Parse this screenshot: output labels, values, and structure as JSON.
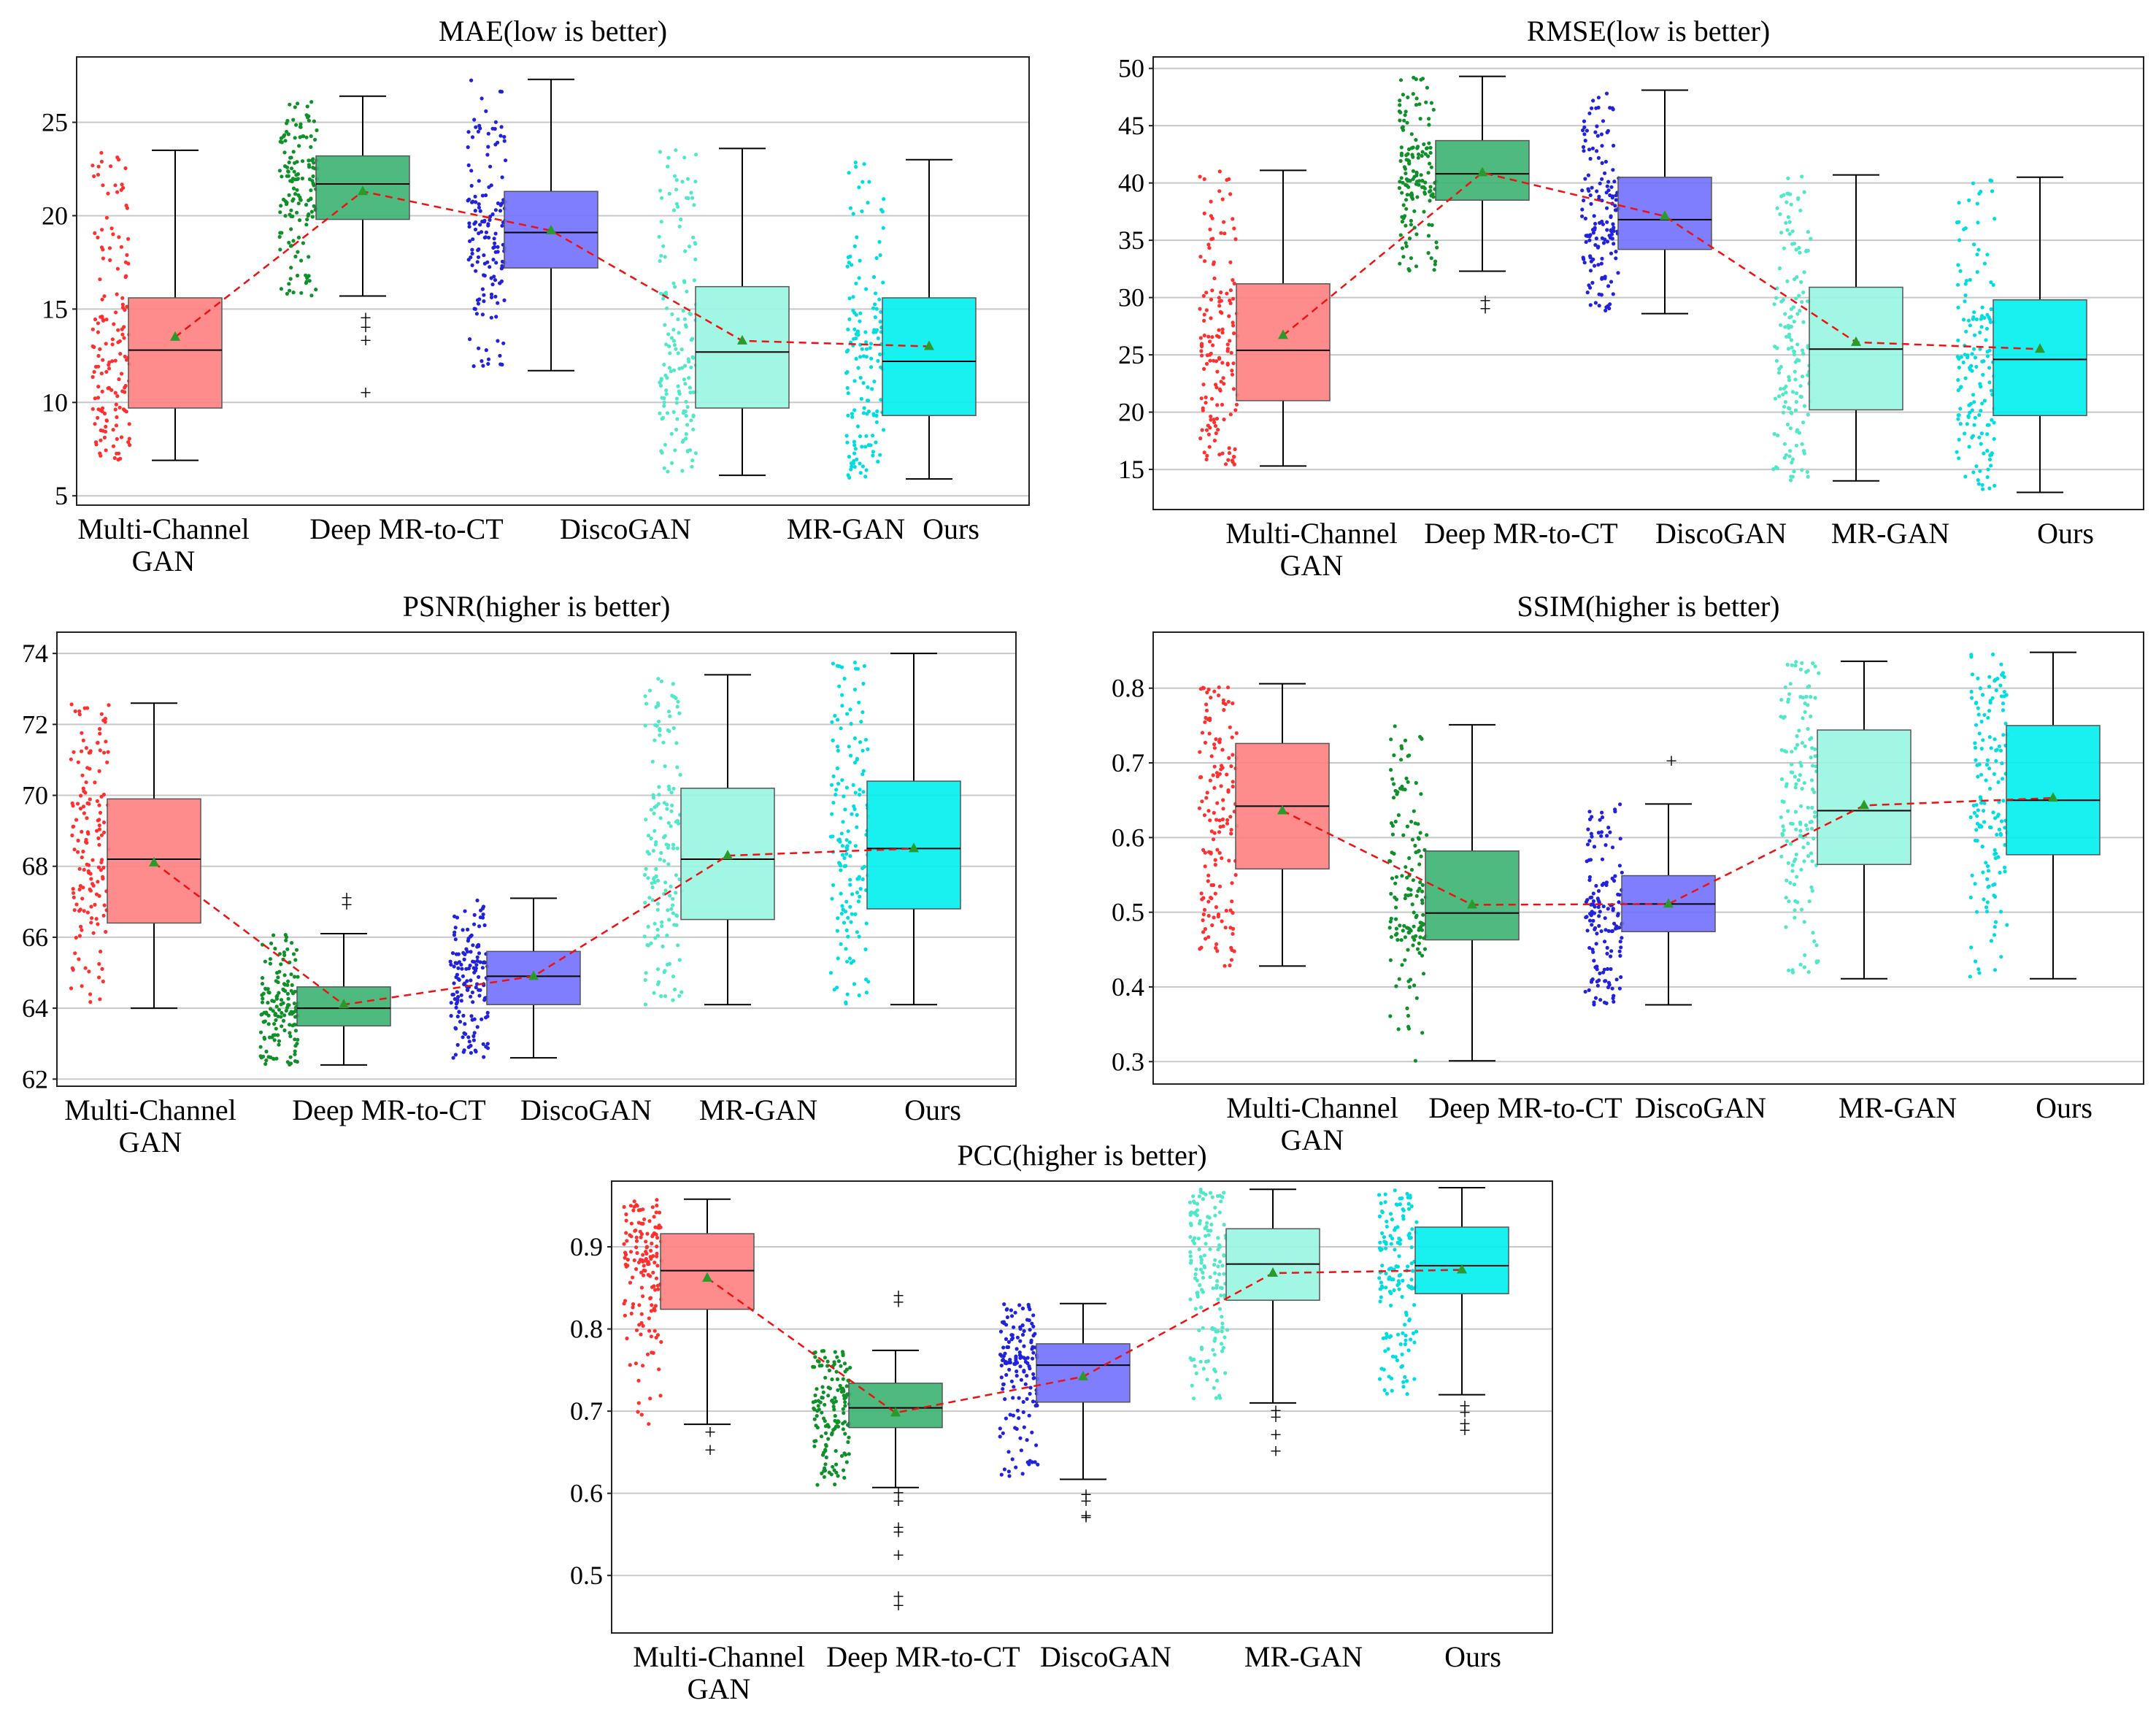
{
  "figure": {
    "description_free": true
  },
  "chart_data": [
    {
      "type": "box",
      "title": "MAE(low is better)",
      "categories": [
        "Multi-Channel GAN",
        "Deep MR-to-CT",
        "DiscoGAN",
        "MR-GAN",
        "Ours"
      ],
      "category_lines": [
        [
          "Multi-Channel",
          "GAN"
        ],
        [
          "Deep MR-to-CT"
        ],
        [
          "DiscoGAN"
        ],
        [
          "MR-GAN"
        ],
        [
          "Ours"
        ]
      ],
      "ylim": [
        4.5,
        28.5
      ],
      "yticks": [
        5,
        10,
        15,
        20,
        25
      ],
      "colors": [
        "#ff7f7f",
        "#3cb371",
        "#7070ff",
        "#98f5e1",
        "#00f0f0"
      ],
      "point_colors": [
        "#ff3030",
        "#10902a",
        "#2222dd",
        "#50e8c8",
        "#00dde0"
      ],
      "boxes": [
        {
          "whislo": 6.9,
          "q1": 9.7,
          "med": 12.8,
          "q3": 15.6,
          "whishi": 23.5,
          "mean": 13.5,
          "fliers": []
        },
        {
          "whislo": 15.7,
          "q1": 19.8,
          "med": 21.7,
          "q3": 23.2,
          "whishi": 26.4,
          "mean": 21.3,
          "fliers": [
            14.5,
            14.0,
            13.3,
            10.5
          ]
        },
        {
          "whislo": 11.7,
          "q1": 17.2,
          "med": 19.1,
          "q3": 21.3,
          "whishi": 27.3,
          "mean": 19.2,
          "fliers": []
        },
        {
          "whislo": 6.1,
          "q1": 9.7,
          "med": 12.7,
          "q3": 16.2,
          "whishi": 23.6,
          "mean": 13.3,
          "fliers": []
        },
        {
          "whislo": 5.9,
          "q1": 9.3,
          "med": 12.2,
          "q3": 15.6,
          "whishi": 23.0,
          "mean": 13.0,
          "fliers": []
        }
      ]
    },
    {
      "type": "box",
      "title": "RMSE(low is better)",
      "categories": [
        "Multi-Channel GAN",
        "Deep MR-to-CT",
        "DiscoGAN",
        "MR-GAN",
        "Ours"
      ],
      "category_lines": [
        [
          "Multi-Channel",
          "GAN"
        ],
        [
          "Deep MR-to-CT"
        ],
        [
          "DiscoGAN"
        ],
        [
          "MR-GAN"
        ],
        [
          "Ours"
        ]
      ],
      "ylim": [
        11.5,
        51.0
      ],
      "yticks": [
        15,
        20,
        25,
        30,
        35,
        40,
        45,
        50
      ],
      "colors": [
        "#ff7f7f",
        "#3cb371",
        "#7070ff",
        "#98f5e1",
        "#00f0f0"
      ],
      "point_colors": [
        "#ff3030",
        "#10902a",
        "#2222dd",
        "#50e8c8",
        "#00dde0"
      ],
      "boxes": [
        {
          "whislo": 15.3,
          "q1": 21.0,
          "med": 25.4,
          "q3": 31.2,
          "whishi": 41.1,
          "mean": 26.7,
          "fliers": []
        },
        {
          "whislo": 32.3,
          "q1": 38.5,
          "med": 40.8,
          "q3": 43.7,
          "whishi": 49.3,
          "mean": 40.9,
          "fliers": [
            29.7,
            29.0
          ]
        },
        {
          "whislo": 28.6,
          "q1": 34.2,
          "med": 36.8,
          "q3": 40.5,
          "whishi": 48.1,
          "mean": 37.1,
          "fliers": []
        },
        {
          "whislo": 14.0,
          "q1": 20.2,
          "med": 25.5,
          "q3": 30.9,
          "whishi": 40.7,
          "mean": 26.1,
          "fliers": []
        },
        {
          "whislo": 13.0,
          "q1": 19.7,
          "med": 24.6,
          "q3": 29.8,
          "whishi": 40.5,
          "mean": 25.5,
          "fliers": []
        }
      ]
    },
    {
      "type": "box",
      "title": "PSNR(higher is better)",
      "categories": [
        "Multi-Channel GAN",
        "Deep MR-to-CT",
        "DiscoGAN",
        "MR-GAN",
        "Ours"
      ],
      "category_lines": [
        [
          "Multi-Channel",
          "GAN"
        ],
        [
          "Deep MR-to-CT"
        ],
        [
          "DiscoGAN"
        ],
        [
          "MR-GAN"
        ],
        [
          "Ours"
        ]
      ],
      "ylim": [
        61.8,
        74.6
      ],
      "yticks": [
        62,
        64,
        66,
        68,
        70,
        72,
        74
      ],
      "colors": [
        "#ff7f7f",
        "#3cb371",
        "#7070ff",
        "#98f5e1",
        "#00f0f0"
      ],
      "point_colors": [
        "#ff3030",
        "#10902a",
        "#2222dd",
        "#50e8c8",
        "#00dde0"
      ],
      "boxes": [
        {
          "whislo": 64.0,
          "q1": 66.4,
          "med": 68.2,
          "q3": 69.9,
          "whishi": 72.6,
          "mean": 68.1,
          "fliers": []
        },
        {
          "whislo": 62.4,
          "q1": 63.5,
          "med": 64.0,
          "q3": 64.6,
          "whishi": 66.1,
          "mean": 64.1,
          "fliers": [
            67.1,
            66.9
          ]
        },
        {
          "whislo": 62.6,
          "q1": 64.1,
          "med": 64.9,
          "q3": 65.6,
          "whishi": 67.1,
          "mean": 64.9,
          "fliers": []
        },
        {
          "whislo": 64.1,
          "q1": 66.5,
          "med": 68.2,
          "q3": 70.2,
          "whishi": 73.4,
          "mean": 68.3,
          "fliers": []
        },
        {
          "whislo": 64.1,
          "q1": 66.8,
          "med": 68.5,
          "q3": 70.4,
          "whishi": 74.0,
          "mean": 68.5,
          "fliers": []
        }
      ]
    },
    {
      "type": "box",
      "title": "SSIM(higher is better)",
      "categories": [
        "Multi-Channel GAN",
        "Deep MR-to-CT",
        "DiscoGAN",
        "MR-GAN",
        "Ours"
      ],
      "category_lines": [
        [
          "Multi-Channel",
          "GAN"
        ],
        [
          "Deep MR-to-CT"
        ],
        [
          "DiscoGAN"
        ],
        [
          "MR-GAN"
        ],
        [
          "Ours"
        ]
      ],
      "ylim": [
        0.27,
        0.875
      ],
      "yticks": [
        0.3,
        0.4,
        0.5,
        0.6,
        0.7,
        0.8
      ],
      "colors": [
        "#ff7f7f",
        "#3cb371",
        "#7070ff",
        "#98f5e1",
        "#00f0f0"
      ],
      "point_colors": [
        "#ff3030",
        "#10902a",
        "#2222dd",
        "#50e8c8",
        "#00dde0"
      ],
      "boxes": [
        {
          "whislo": 0.428,
          "q1": 0.558,
          "med": 0.642,
          "q3": 0.726,
          "whishi": 0.806,
          "mean": 0.636,
          "fliers": []
        },
        {
          "whislo": 0.301,
          "q1": 0.463,
          "med": 0.499,
          "q3": 0.582,
          "whishi": 0.751,
          "mean": 0.51,
          "fliers": []
        },
        {
          "whislo": 0.376,
          "q1": 0.474,
          "med": 0.511,
          "q3": 0.549,
          "whishi": 0.645,
          "mean": 0.511,
          "fliers": [
            0.702
          ]
        },
        {
          "whislo": 0.411,
          "q1": 0.564,
          "med": 0.636,
          "q3": 0.744,
          "whishi": 0.836,
          "mean": 0.643,
          "fliers": []
        },
        {
          "whislo": 0.411,
          "q1": 0.577,
          "med": 0.65,
          "q3": 0.75,
          "whishi": 0.848,
          "mean": 0.653,
          "fliers": []
        }
      ]
    },
    {
      "type": "box",
      "title": "PCC(higher is better)",
      "categories": [
        "Multi-Channel GAN",
        "Deep MR-to-CT",
        "DiscoGAN",
        "MR-GAN",
        "Ours"
      ],
      "category_lines": [
        [
          "Multi-Channel",
          "GAN"
        ],
        [
          "Deep MR-to-CT"
        ],
        [
          "DiscoGAN"
        ],
        [
          "MR-GAN"
        ],
        [
          "Ours"
        ]
      ],
      "ylim": [
        0.43,
        0.98
      ],
      "yticks": [
        0.5,
        0.6,
        0.7,
        0.8,
        0.9
      ],
      "colors": [
        "#ff7f7f",
        "#3cb371",
        "#7070ff",
        "#98f5e1",
        "#00f0f0"
      ],
      "point_colors": [
        "#ff3030",
        "#10902a",
        "#2222dd",
        "#50e8c8",
        "#00dde0"
      ],
      "boxes": [
        {
          "whislo": 0.684,
          "q1": 0.824,
          "med": 0.871,
          "q3": 0.916,
          "whishi": 0.958,
          "mean": 0.862,
          "fliers": [
            0.674,
            0.652
          ]
        },
        {
          "whislo": 0.607,
          "q1": 0.68,
          "med": 0.704,
          "q3": 0.734,
          "whishi": 0.774,
          "mean": 0.698,
          "fliers": [
            0.84,
            0.832,
            0.6,
            0.59,
            0.558,
            0.552,
            0.524,
            0.474,
            0.463
          ]
        },
        {
          "whislo": 0.617,
          "q1": 0.711,
          "med": 0.756,
          "q3": 0.782,
          "whishi": 0.831,
          "mean": 0.742,
          "fliers": [
            0.598,
            0.59,
            0.572,
            0.57
          ]
        },
        {
          "whislo": 0.71,
          "q1": 0.835,
          "med": 0.879,
          "q3": 0.922,
          "whishi": 0.97,
          "mean": 0.868,
          "fliers": [
            0.7,
            0.692,
            0.671,
            0.651
          ]
        },
        {
          "whislo": 0.72,
          "q1": 0.843,
          "med": 0.877,
          "q3": 0.924,
          "whishi": 0.972,
          "mean": 0.872,
          "fliers": [
            0.706,
            0.698,
            0.684,
            0.676
          ]
        }
      ]
    }
  ]
}
